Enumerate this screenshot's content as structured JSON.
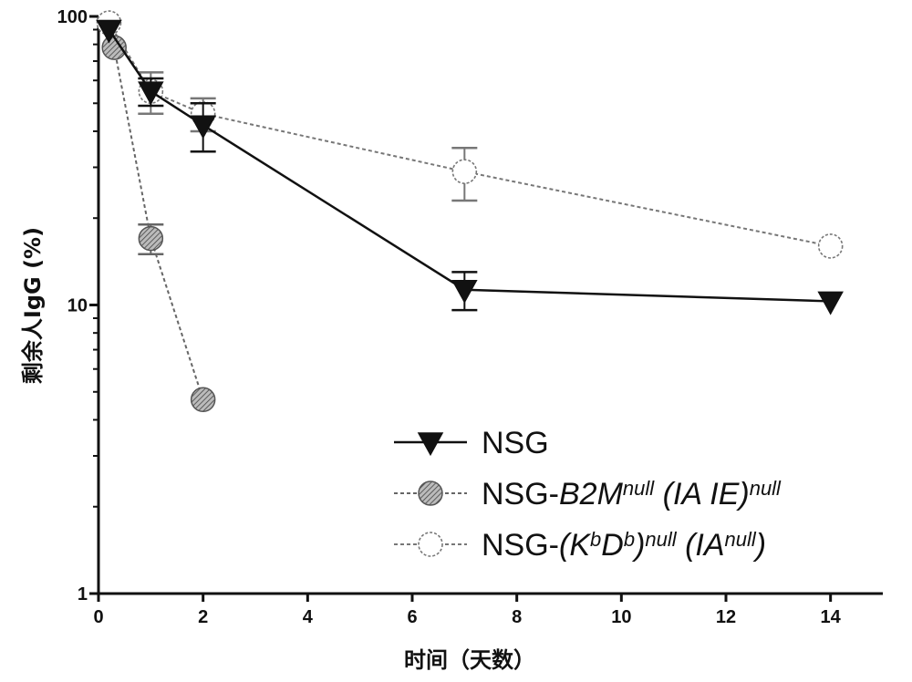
{
  "chart_data": {
    "type": "line",
    "xlabel": "时间（天数）",
    "ylabel": "剩余人IgG (%)",
    "xlim": [
      0,
      15
    ],
    "ylim": [
      1,
      100
    ],
    "yscale": "log",
    "x_ticks": [
      0,
      2,
      4,
      6,
      8,
      10,
      12,
      14
    ],
    "y_ticks": [
      1,
      10,
      100
    ],
    "legend_position": "bottom-right",
    "series": [
      {
        "name": "NSG",
        "label_base": "NSG",
        "marker": "triangle-down",
        "line": "solid",
        "color": "#111111",
        "x": [
          0.2,
          1,
          2,
          7,
          14
        ],
        "y": [
          90,
          55,
          42,
          11.3,
          10.3
        ],
        "yerr": [
          0,
          6,
          8,
          1.7,
          0
        ]
      },
      {
        "name": "NSG-B2M null (IA IE) null",
        "label_base": "NSG-",
        "label_parts": [
          {
            "text": "B2M",
            "italic": true
          },
          {
            "text": "null",
            "italic": true,
            "sup": true
          },
          {
            "text": " (IA IE)",
            "italic": true
          },
          {
            "text": "null",
            "italic": true,
            "sup": true
          }
        ],
        "marker": "circle-hatched",
        "line": "dashed",
        "color": "#666666",
        "x": [
          0.3,
          1,
          2
        ],
        "y": [
          78,
          17,
          4.7
        ],
        "yerr": [
          0,
          2,
          0
        ]
      },
      {
        "name": "NSG-(KbDb)null (IAnull)",
        "label_base": "NSG-",
        "label_parts": [
          {
            "text": "(K",
            "italic": true
          },
          {
            "text": "b",
            "italic": true,
            "sup": true
          },
          {
            "text": "D",
            "italic": true
          },
          {
            "text": "b",
            "italic": true,
            "sup": true
          },
          {
            "text": ")",
            "italic": true
          },
          {
            "text": "null",
            "italic": true,
            "sup": true
          },
          {
            "text": " (IA",
            "italic": true
          },
          {
            "text": "null",
            "italic": true,
            "sup": true
          },
          {
            "text": ")",
            "italic": true
          }
        ],
        "marker": "circle-open",
        "line": "dashed",
        "color": "#777777",
        "x": [
          0.2,
          1,
          2,
          7,
          14
        ],
        "y": [
          95,
          55,
          46,
          29,
          16
        ],
        "yerr": [
          0,
          9,
          6,
          6,
          0
        ]
      }
    ]
  }
}
